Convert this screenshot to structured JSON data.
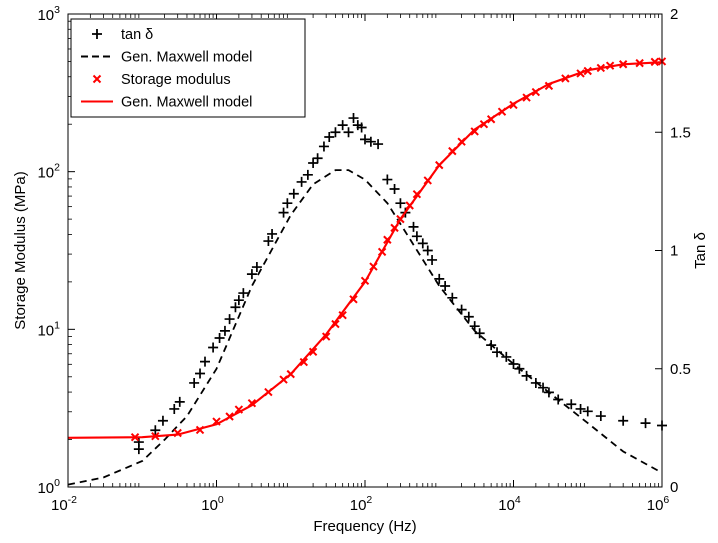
{
  "chart_data": {
    "type": "line",
    "xlabel": "Frequency (Hz)",
    "ylabel_left": "Storage Modulus (MPa)",
    "ylabel_right": "Tan δ",
    "x_scale": "log",
    "left_y_scale": "log",
    "right_y_scale": "linear",
    "xlim": [
      0.01,
      1000000
    ],
    "ylim_left": [
      1,
      1000
    ],
    "ylim_right": [
      0,
      2
    ],
    "x_ticks": [
      {
        "value": 0.01,
        "base": "10",
        "exp": "-2"
      },
      {
        "value": 1,
        "base": "10",
        "exp": "0"
      },
      {
        "value": 100,
        "base": "10",
        "exp": "2"
      },
      {
        "value": 10000,
        "base": "10",
        "exp": "4"
      },
      {
        "value": 1000000,
        "base": "10",
        "exp": "6"
      }
    ],
    "y_left_ticks": [
      {
        "value": 1,
        "base": "10",
        "exp": "0"
      },
      {
        "value": 10,
        "base": "10",
        "exp": "1"
      },
      {
        "value": 100,
        "base": "10",
        "exp": "2"
      },
      {
        "value": 1000,
        "base": "10",
        "exp": "3"
      }
    ],
    "y_right_ticks": [
      {
        "value": 0,
        "label": "0"
      },
      {
        "value": 0.5,
        "label": "0.5"
      },
      {
        "value": 1,
        "label": "1"
      },
      {
        "value": 1.5,
        "label": "1.5"
      },
      {
        "value": 2,
        "label": "2"
      }
    ],
    "grid": false,
    "legend_position": "top-left",
    "legend": [
      {
        "label": "tan δ",
        "marker": "plus",
        "color": "#000000"
      },
      {
        "label": "Gen. Maxwell model",
        "line": "dashed",
        "color": "#000000"
      },
      {
        "label": "Storage modulus",
        "marker": "x",
        "color": "#ff0000"
      },
      {
        "label": "Gen. Maxwell model",
        "line": "solid",
        "color": "#ff0000"
      }
    ],
    "series": [
      {
        "name": "tan δ",
        "axis": "right",
        "style": "markers",
        "marker": "plus",
        "color": "#000000",
        "points": [
          [
            0.09,
            0.16
          ],
          [
            0.09,
            0.19
          ],
          [
            0.15,
            0.24
          ],
          [
            0.19,
            0.28
          ],
          [
            0.27,
            0.33
          ],
          [
            0.32,
            0.36
          ],
          [
            0.5,
            0.44
          ],
          [
            0.6,
            0.48
          ],
          [
            0.7,
            0.53
          ],
          [
            0.9,
            0.59
          ],
          [
            1.1,
            0.63
          ],
          [
            1.3,
            0.66
          ],
          [
            1.5,
            0.71
          ],
          [
            1.8,
            0.76
          ],
          [
            2.0,
            0.79
          ],
          [
            2.3,
            0.82
          ],
          [
            3.0,
            0.9
          ],
          [
            3.5,
            0.93
          ],
          [
            5.0,
            1.04
          ],
          [
            5.6,
            1.07
          ],
          [
            8.0,
            1.16
          ],
          [
            9.0,
            1.2
          ],
          [
            11,
            1.24
          ],
          [
            14,
            1.29
          ],
          [
            17,
            1.32
          ],
          [
            20,
            1.37
          ],
          [
            23,
            1.39
          ],
          [
            28,
            1.44
          ],
          [
            33,
            1.48
          ],
          [
            40,
            1.5
          ],
          [
            50,
            1.53
          ],
          [
            60,
            1.5
          ],
          [
            70,
            1.56
          ],
          [
            80,
            1.53
          ],
          [
            90,
            1.52
          ],
          [
            100,
            1.47
          ],
          [
            120,
            1.46
          ],
          [
            150,
            1.45
          ],
          [
            200,
            1.3
          ],
          [
            250,
            1.26
          ],
          [
            300,
            1.2
          ],
          [
            350,
            1.16
          ],
          [
            450,
            1.1
          ],
          [
            500,
            1.06
          ],
          [
            600,
            1.03
          ],
          [
            700,
            1.0
          ],
          [
            800,
            0.96
          ],
          [
            1000,
            0.88
          ],
          [
            1200,
            0.85
          ],
          [
            1500,
            0.8
          ],
          [
            2000,
            0.75
          ],
          [
            2500,
            0.72
          ],
          [
            3000,
            0.68
          ],
          [
            3500,
            0.65
          ],
          [
            5000,
            0.6
          ],
          [
            6000,
            0.57
          ],
          [
            8000,
            0.55
          ],
          [
            10000,
            0.52
          ],
          [
            12000,
            0.5
          ],
          [
            15000,
            0.47
          ],
          [
            20000,
            0.44
          ],
          [
            25000,
            0.42
          ],
          [
            30000,
            0.4
          ],
          [
            40000,
            0.37
          ],
          [
            60000,
            0.35
          ],
          [
            80000,
            0.33
          ],
          [
            100000,
            0.32
          ],
          [
            150000,
            0.3
          ],
          [
            300000,
            0.28
          ],
          [
            600000,
            0.27
          ],
          [
            1000000,
            0.26
          ]
        ]
      },
      {
        "name": "Gen. Maxwell model",
        "axis": "right",
        "style": "dashed",
        "color": "#000000",
        "points": [
          [
            0.01,
            0.01
          ],
          [
            0.03,
            0.04
          ],
          [
            0.1,
            0.11
          ],
          [
            0.2,
            0.2
          ],
          [
            0.4,
            0.3
          ],
          [
            1,
            0.5
          ],
          [
            3,
            0.85
          ],
          [
            10,
            1.15
          ],
          [
            20,
            1.28
          ],
          [
            40,
            1.34
          ],
          [
            60,
            1.34
          ],
          [
            100,
            1.3
          ],
          [
            200,
            1.2
          ],
          [
            400,
            1.05
          ],
          [
            1000,
            0.85
          ],
          [
            3000,
            0.66
          ],
          [
            10000,
            0.52
          ],
          [
            30000,
            0.4
          ],
          [
            100000,
            0.27
          ],
          [
            300000,
            0.15
          ],
          [
            1000000,
            0.06
          ]
        ]
      },
      {
        "name": "Storage modulus",
        "axis": "left",
        "style": "markers",
        "marker": "x",
        "color": "#ff0000",
        "points": [
          [
            0.08,
            2.07
          ],
          [
            0.15,
            2.1
          ],
          [
            0.3,
            2.2
          ],
          [
            0.6,
            2.3
          ],
          [
            1,
            2.6
          ],
          [
            1.5,
            2.8
          ],
          [
            2,
            3.1
          ],
          [
            3,
            3.4
          ],
          [
            5,
            4.0
          ],
          [
            8,
            4.8
          ],
          [
            10,
            5.2
          ],
          [
            15,
            6.2
          ],
          [
            20,
            7.2
          ],
          [
            30,
            9.0
          ],
          [
            40,
            10.8
          ],
          [
            50,
            12.3
          ],
          [
            70,
            15.5
          ],
          [
            100,
            20.3
          ],
          [
            130,
            25
          ],
          [
            170,
            31
          ],
          [
            200,
            37
          ],
          [
            250,
            44
          ],
          [
            300,
            50
          ],
          [
            400,
            61
          ],
          [
            500,
            72
          ],
          [
            700,
            88
          ],
          [
            1000,
            110
          ],
          [
            1500,
            135
          ],
          [
            2000,
            155
          ],
          [
            3000,
            180
          ],
          [
            4000,
            200
          ],
          [
            5000,
            215
          ],
          [
            7000,
            240
          ],
          [
            10000,
            265
          ],
          [
            15000,
            295
          ],
          [
            20000,
            320
          ],
          [
            30000,
            350
          ],
          [
            50000,
            390
          ],
          [
            80000,
            420
          ],
          [
            100000,
            435
          ],
          [
            150000,
            455
          ],
          [
            200000,
            470
          ],
          [
            300000,
            480
          ],
          [
            500000,
            488
          ],
          [
            800000,
            497
          ],
          [
            1000000,
            500
          ]
        ]
      },
      {
        "name": "Gen. Maxwell model",
        "axis": "left",
        "style": "solid",
        "color": "#ff0000",
        "points": [
          [
            0.01,
            2.05
          ],
          [
            0.1,
            2.07
          ],
          [
            0.3,
            2.15
          ],
          [
            1,
            2.5
          ],
          [
            3,
            3.3
          ],
          [
            10,
            5.2
          ],
          [
            30,
            9.3
          ],
          [
            100,
            20
          ],
          [
            300,
            50
          ],
          [
            1000,
            110
          ],
          [
            3000,
            185
          ],
          [
            10000,
            270
          ],
          [
            30000,
            360
          ],
          [
            100000,
            440
          ],
          [
            300000,
            480
          ],
          [
            1000000,
            495
          ]
        ]
      }
    ]
  }
}
